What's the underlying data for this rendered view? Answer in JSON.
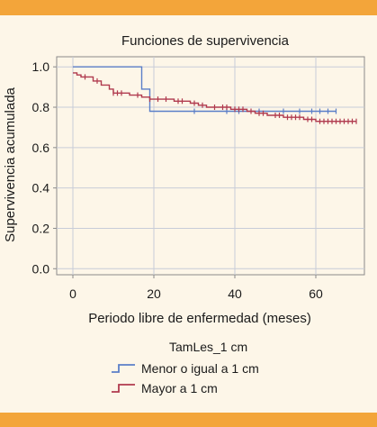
{
  "colors": {
    "accent": "#f3a53a",
    "background": "#fdf6e8",
    "grid": "#c8ccd8",
    "axis": "#8a8a8a"
  },
  "chart_data": {
    "type": "line",
    "title": "Funciones de supervivencia",
    "xlabel": "Periodo libre de enfermedad (meses)",
    "ylabel": "Supervivencia acumulada",
    "xlim": [
      -4,
      72
    ],
    "ylim": [
      -0.03,
      1.05
    ],
    "x_ticks": [
      0,
      20,
      40,
      60
    ],
    "x_tick_labels": [
      "0",
      "20",
      "40",
      "60"
    ],
    "y_ticks": [
      0.0,
      0.2,
      0.4,
      0.6,
      0.8,
      1.0
    ],
    "y_tick_labels": [
      "0.0",
      "0.2",
      "0.4",
      "0.6",
      "0.8",
      "1.0"
    ],
    "grid": true,
    "legend_title": "TamLes_1 cm",
    "legend_position": "bottom-center",
    "series": [
      {
        "name": "Menor o igual a 1 cm",
        "color": "#5b7fc8",
        "step": [
          [
            0,
            1.0
          ],
          [
            17,
            1.0
          ],
          [
            17,
            0.89
          ],
          [
            19,
            0.89
          ],
          [
            19,
            0.78
          ],
          [
            65,
            0.78
          ]
        ],
        "censored": [
          [
            30,
            0.78
          ],
          [
            38,
            0.78
          ],
          [
            41,
            0.78
          ],
          [
            46,
            0.78
          ],
          [
            52,
            0.78
          ],
          [
            56,
            0.78
          ],
          [
            59,
            0.78
          ],
          [
            61,
            0.78
          ],
          [
            63,
            0.78
          ],
          [
            65,
            0.78
          ]
        ]
      },
      {
        "name": "Mayor a 1 cm",
        "color": "#b03a4e",
        "step": [
          [
            0,
            0.97
          ],
          [
            1,
            0.97
          ],
          [
            1,
            0.96
          ],
          [
            2,
            0.96
          ],
          [
            2,
            0.95
          ],
          [
            5,
            0.95
          ],
          [
            5,
            0.93
          ],
          [
            7,
            0.93
          ],
          [
            7,
            0.91
          ],
          [
            9,
            0.91
          ],
          [
            9,
            0.89
          ],
          [
            10,
            0.89
          ],
          [
            10,
            0.87
          ],
          [
            14,
            0.87
          ],
          [
            14,
            0.86
          ],
          [
            17,
            0.86
          ],
          [
            17,
            0.85
          ],
          [
            19,
            0.85
          ],
          [
            19,
            0.84
          ],
          [
            25,
            0.84
          ],
          [
            25,
            0.83
          ],
          [
            29,
            0.83
          ],
          [
            29,
            0.82
          ],
          [
            31,
            0.82
          ],
          [
            31,
            0.81
          ],
          [
            33,
            0.81
          ],
          [
            33,
            0.8
          ],
          [
            39,
            0.8
          ],
          [
            39,
            0.79
          ],
          [
            43,
            0.79
          ],
          [
            43,
            0.78
          ],
          [
            45,
            0.78
          ],
          [
            45,
            0.77
          ],
          [
            48,
            0.77
          ],
          [
            48,
            0.76
          ],
          [
            52,
            0.76
          ],
          [
            52,
            0.75
          ],
          [
            57,
            0.75
          ],
          [
            57,
            0.74
          ],
          [
            60,
            0.74
          ],
          [
            60,
            0.73
          ],
          [
            70,
            0.73
          ]
        ],
        "censored": [
          [
            3,
            0.95
          ],
          [
            6,
            0.93
          ],
          [
            10,
            0.87
          ],
          [
            11,
            0.87
          ],
          [
            12,
            0.87
          ],
          [
            16,
            0.86
          ],
          [
            19,
            0.84
          ],
          [
            21,
            0.84
          ],
          [
            23,
            0.84
          ],
          [
            26,
            0.83
          ],
          [
            27,
            0.83
          ],
          [
            30,
            0.82
          ],
          [
            32,
            0.81
          ],
          [
            35,
            0.8
          ],
          [
            37,
            0.8
          ],
          [
            38,
            0.8
          ],
          [
            40,
            0.79
          ],
          [
            41,
            0.79
          ],
          [
            42,
            0.79
          ],
          [
            44,
            0.78
          ],
          [
            46,
            0.77
          ],
          [
            47,
            0.77
          ],
          [
            50,
            0.76
          ],
          [
            51,
            0.76
          ],
          [
            53,
            0.75
          ],
          [
            54,
            0.75
          ],
          [
            55,
            0.75
          ],
          [
            56,
            0.75
          ],
          [
            58,
            0.74
          ],
          [
            59,
            0.74
          ],
          [
            61,
            0.73
          ],
          [
            62,
            0.73
          ],
          [
            63,
            0.73
          ],
          [
            64,
            0.73
          ],
          [
            65,
            0.73
          ],
          [
            66,
            0.73
          ],
          [
            67,
            0.73
          ],
          [
            68,
            0.73
          ],
          [
            69,
            0.73
          ],
          [
            70,
            0.73
          ]
        ]
      }
    ]
  }
}
